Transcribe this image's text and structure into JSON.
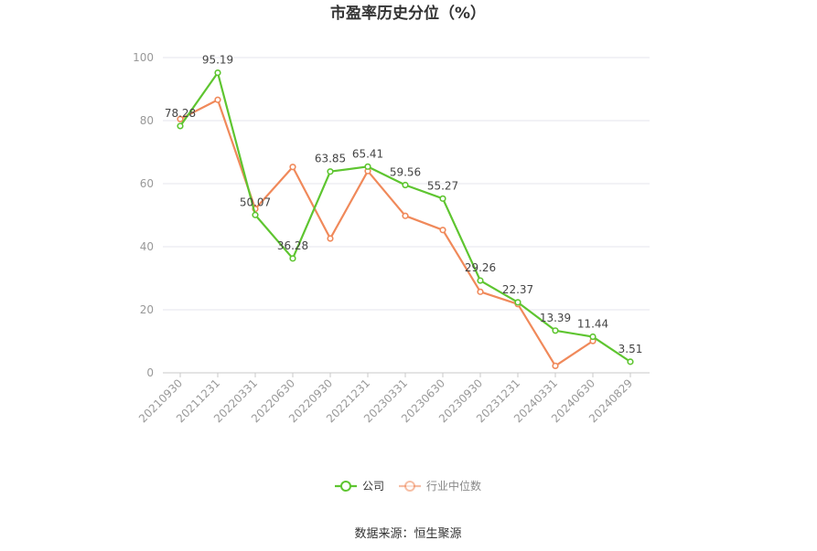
{
  "chart_data": {
    "type": "line",
    "title": "市盈率历史分位（%）",
    "source": "数据来源：恒生聚源",
    "categories": [
      "20210930",
      "20211231",
      "20220331",
      "20220630",
      "20220930",
      "20221231",
      "20230331",
      "20230630",
      "20230930",
      "20231231",
      "20240331",
      "20240630",
      "20240829"
    ],
    "ylim": [
      0,
      100
    ],
    "yticks": [
      0,
      20,
      40,
      60,
      80,
      100
    ],
    "grid": true,
    "legend_position": "bottom",
    "series": [
      {
        "name": "公司",
        "color": "#5ec530",
        "values": [
          78.28,
          95.19,
          50.07,
          36.28,
          63.85,
          65.41,
          59.56,
          55.27,
          29.26,
          22.37,
          13.39,
          11.44,
          3.51
        ],
        "labels": [
          "78.28",
          "95.19",
          "50.07",
          "36.28",
          "63.85",
          "65.41",
          "59.56",
          "55.27",
          "29.26",
          "22.37",
          "13.39",
          "11.44",
          "3.51"
        ]
      },
      {
        "name": "行业中位数",
        "color": "#f0895a",
        "values": [
          80.5,
          86.6,
          52.0,
          65.3,
          42.6,
          64.0,
          49.8,
          45.3,
          25.7,
          21.8,
          2.2,
          10.1,
          null
        ]
      }
    ]
  }
}
